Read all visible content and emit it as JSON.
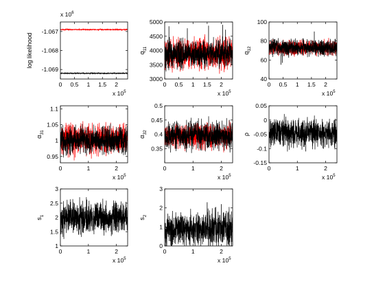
{
  "chart_data": [
    {
      "type": "line",
      "ylabel": "log likelihood",
      "xlim": [
        0,
        240000
      ],
      "ylim": [
        -1069500,
        -1066500
      ],
      "xticks": [
        0,
        50000,
        100000,
        150000,
        200000
      ],
      "xtick_labels": [
        "0",
        "0.5",
        "1",
        "1.5",
        "2"
      ],
      "x_exponent_label": "x 10",
      "x_exponent": "5",
      "yticks": [
        -1069000,
        -1068000,
        -1067000
      ],
      "ytick_labels": [
        "-1.069",
        "-1.068",
        "-1.067"
      ],
      "y_exponent_label": "x 10",
      "y_exponent": "6",
      "series": [
        {
          "color": "#ff0000",
          "center": -1066900,
          "spread": 30,
          "spikes": []
        },
        {
          "color": "#000000",
          "center": -1069200,
          "spread": 30,
          "spikes": []
        }
      ]
    },
    {
      "type": "line",
      "ylabel": "q",
      "ylabel_sub": "11",
      "xlim": [
        0,
        240000
      ],
      "ylim": [
        3000,
        5000
      ],
      "xticks": [
        0,
        50000,
        100000,
        150000,
        200000
      ],
      "xtick_labels": [
        "0",
        "0.5",
        "1",
        "1.5",
        "2"
      ],
      "x_exponent_label": "x 10",
      "x_exponent": "5",
      "yticks": [
        3000,
        3500,
        4000,
        4500,
        5000
      ],
      "ytick_labels": [
        "3000",
        "3500",
        "4000",
        "4500",
        "5000"
      ],
      "series": [
        {
          "color": "#ff0000",
          "center": 3880,
          "spread": 560,
          "spikes": []
        },
        {
          "color": "#000000",
          "center": 3880,
          "spread": 480,
          "spikes": [
            [
              15000,
              4850
            ],
            [
              80000,
              4780
            ],
            [
              155000,
              4870
            ],
            [
              205000,
              4900
            ],
            [
              215000,
              4730
            ]
          ]
        }
      ]
    },
    {
      "type": "line",
      "ylabel": "q",
      "ylabel_sub": "12",
      "xlim": [
        0,
        240000
      ],
      "ylim": [
        40,
        100
      ],
      "xticks": [
        0,
        50000,
        100000,
        150000,
        200000
      ],
      "xtick_labels": [
        "0",
        "0.5",
        "1",
        "1.5",
        "2"
      ],
      "x_exponent_label": "x 10",
      "x_exponent": "5",
      "yticks": [
        40,
        60,
        80,
        100
      ],
      "ytick_labels": [
        "40",
        "60",
        "80",
        "100"
      ],
      "series": [
        {
          "color": "#ff0000",
          "center": 73,
          "spread": 8,
          "spikes": []
        },
        {
          "color": "#000000",
          "center": 73,
          "spread": 9,
          "spikes": [
            [
              42000,
              55
            ],
            [
              47000,
              57
            ],
            [
              160000,
              90
            ]
          ]
        }
      ]
    },
    {
      "type": "line",
      "ylabel": "α",
      "ylabel_sub": "31",
      "xlim": [
        0,
        240000
      ],
      "ylim": [
        0.93,
        1.11
      ],
      "xticks": [
        0,
        50000,
        100000,
        150000,
        200000
      ],
      "xtick_labels": [
        "0",
        "1",
        "2"
      ],
      "xtick_values": [
        0,
        100000,
        200000
      ],
      "x_exponent_label": "x 10",
      "x_exponent": "5",
      "yticks": [
        0.95,
        1,
        1.05,
        1.1
      ],
      "ytick_labels": [
        "0.95",
        "1",
        "1.05",
        "1.1"
      ],
      "series": [
        {
          "color": "#ff0000",
          "center": 1.005,
          "spread": 0.05,
          "spikes": []
        },
        {
          "color": "#000000",
          "center": 1.0,
          "spread": 0.045,
          "spikes": []
        }
      ]
    },
    {
      "type": "line",
      "ylabel": "α",
      "ylabel_sub": "32",
      "xlim": [
        0,
        240000
      ],
      "ylim": [
        0.3,
        0.5
      ],
      "xtick_values": [
        0,
        100000,
        200000
      ],
      "xtick_labels": [
        "0",
        "1",
        "2"
      ],
      "x_exponent_label": "x 10",
      "x_exponent": "5",
      "yticks": [
        0.35,
        0.4,
        0.45,
        0.5
      ],
      "ytick_labels": [
        "0.35",
        "0.4",
        "0.45",
        "0.5"
      ],
      "series": [
        {
          "color": "#ff0000",
          "center": 0.395,
          "spread": 0.045,
          "spikes": []
        },
        {
          "color": "#000000",
          "center": 0.395,
          "spread": 0.05,
          "spikes": []
        }
      ]
    },
    {
      "type": "line",
      "ylabel": "ρ",
      "xlim": [
        0,
        240000
      ],
      "ylim": [
        -0.15,
        0.05
      ],
      "xtick_values": [
        0,
        100000,
        200000
      ],
      "xtick_labels": [
        "0",
        "1",
        "2"
      ],
      "x_exponent_label": "x 10",
      "x_exponent": "5",
      "yticks": [
        -0.15,
        -0.1,
        -0.05,
        0,
        0.05
      ],
      "ytick_labels": [
        "-0.15",
        "-0.1",
        "-0.05",
        "0",
        "0.05"
      ],
      "series": [
        {
          "color": "#000000",
          "center": -0.045,
          "spread": 0.05,
          "spikes": [
            [
              60000,
              0.0
            ],
            [
              130000,
              -0.11
            ]
          ]
        }
      ]
    },
    {
      "type": "line",
      "ylabel": "s",
      "ylabel_sub": "1",
      "xlim": [
        0,
        240000
      ],
      "ylim": [
        1,
        3
      ],
      "xtick_values": [
        0,
        100000,
        200000
      ],
      "xtick_labels": [
        "0",
        "1",
        "2"
      ],
      "x_exponent_label": "x 10",
      "x_exponent": "5",
      "yticks": [
        1,
        1.5,
        2,
        2.5,
        3
      ],
      "ytick_labels": [
        "1",
        "1.5",
        "2",
        "2.5",
        "3"
      ],
      "series": [
        {
          "color": "#000000",
          "center": 2.0,
          "spread": 0.55,
          "spikes": []
        }
      ]
    },
    {
      "type": "line",
      "ylabel": "s",
      "ylabel_sub": "2",
      "xlim": [
        0,
        240000
      ],
      "ylim": [
        0,
        3
      ],
      "xtick_values": [
        0,
        100000,
        200000
      ],
      "xtick_labels": [
        "0",
        "1",
        "2"
      ],
      "x_exponent_label": "x 10",
      "x_exponent": "5",
      "yticks": [
        0,
        1,
        2,
        3
      ],
      "ytick_labels": [
        "0",
        "1",
        "2",
        "3"
      ],
      "series": [
        {
          "color": "#000000",
          "center": 0.9,
          "spread": 0.9,
          "spikes": [
            [
              150000,
              2.3
            ],
            [
              200000,
              2.2
            ]
          ]
        }
      ]
    }
  ]
}
